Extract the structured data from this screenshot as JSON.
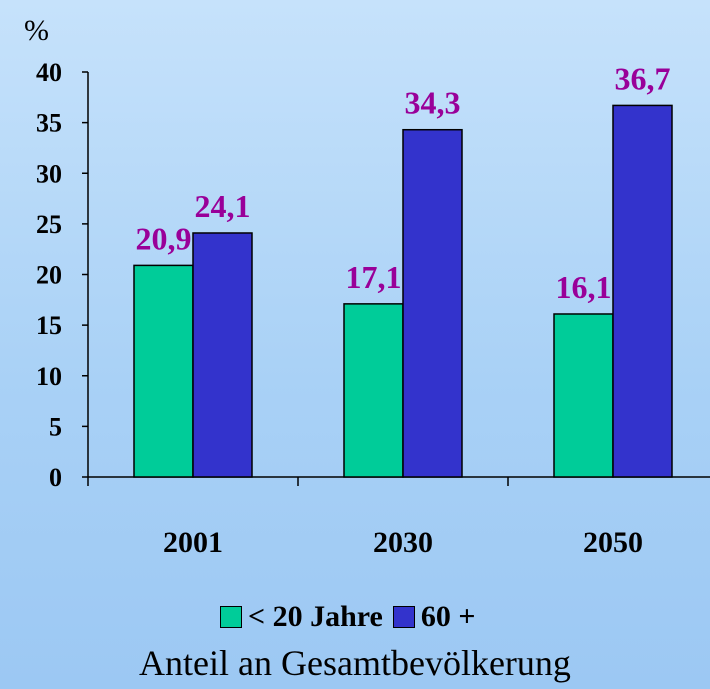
{
  "chart_data": {
    "type": "bar",
    "unit_label": "%",
    "categories": [
      "2001",
      "2030",
      "2050"
    ],
    "series": [
      {
        "name": "< 20 Jahre",
        "values": [
          20.9,
          17.1,
          16.1
        ],
        "labels": [
          "20,9",
          "17,1",
          "16,1"
        ],
        "color": "#00cc99"
      },
      {
        "name": "60 +",
        "values": [
          24.1,
          34.3,
          36.7
        ],
        "labels": [
          "24,1",
          "34,3",
          "36,7"
        ],
        "color": "#3333cc"
      }
    ],
    "yticks": [
      "0",
      "5",
      "10",
      "15",
      "20",
      "25",
      "30",
      "35",
      "40"
    ],
    "ylim": [
      0,
      40
    ],
    "label_color": "#990099",
    "grid": false,
    "legend_position": "bottom",
    "caption": "Anteil an Gesamtbevölkerung"
  }
}
